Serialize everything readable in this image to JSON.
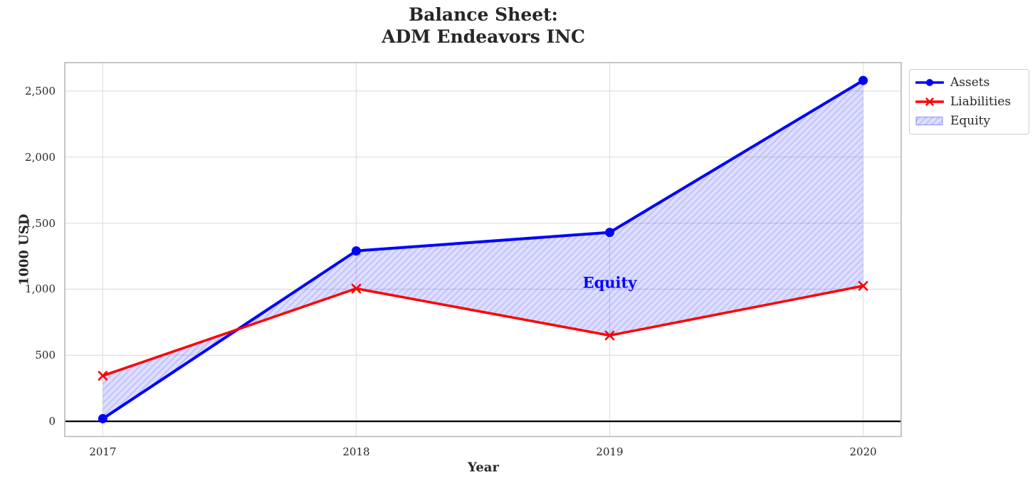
{
  "header": {
    "title_line1": "Balance Sheet:",
    "title_line2": "ADM Endeavors INC"
  },
  "chart_data": {
    "type": "line",
    "title": "Balance Sheet: ADM Endeavors INC",
    "xlabel": "Year",
    "ylabel": "1000 USD",
    "x": [
      2017,
      2018,
      2019,
      2020
    ],
    "xtick_labels": [
      "2017",
      "2018",
      "2019",
      "2020"
    ],
    "yticks": [
      0,
      500,
      1000,
      1500,
      2000,
      2500
    ],
    "ytick_labels": [
      "0",
      "500",
      "1,000",
      "1,500",
      "2,000",
      "2,500"
    ],
    "xlim": [
      2016.85,
      2020.15
    ],
    "ylim": [
      -115,
      2715
    ],
    "grid": true,
    "zero_line": true,
    "series": [
      {
        "name": "Assets",
        "color": "#0000ff",
        "marker": "circle",
        "line_width": 4,
        "values": [
          20,
          1290,
          1430,
          2580
        ]
      },
      {
        "name": "Liabilities",
        "color": "#ff0000",
        "marker": "x",
        "line_width": 3.5,
        "values": [
          345,
          1005,
          650,
          1025
        ]
      }
    ],
    "area": {
      "name": "Equity",
      "between": [
        "Assets",
        "Liabilities"
      ],
      "fill_color": "rgba(0,0,255,0.13)",
      "hatch_color": "rgba(0,0,255,0.13)",
      "hatch": "///"
    },
    "annotation": {
      "text": "Equity",
      "x": 2019,
      "y": 1050,
      "color": "#0000ff"
    },
    "legend_position": "outside-upper-right"
  },
  "legend": {
    "items": [
      {
        "label": "Assets"
      },
      {
        "label": "Liabilities"
      },
      {
        "label": "Equity"
      }
    ]
  },
  "colors": {
    "assets": "#0000ff",
    "liabilities": "#ff0000",
    "grid": "#e0e0e0",
    "spine": "#c0c0c0",
    "text": "#262626",
    "zero_line": "#000000",
    "background": "#ffffff"
  }
}
